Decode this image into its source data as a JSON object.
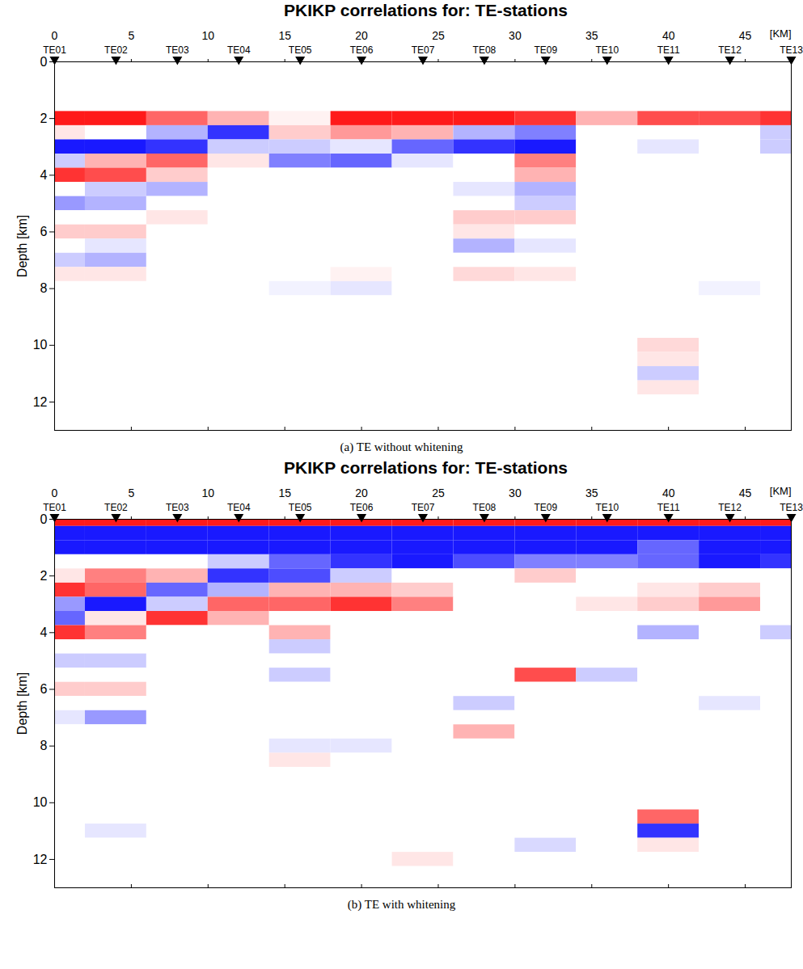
{
  "chart_data": [
    {
      "type": "heatmap",
      "title": "PKIKP correlations for: TE-stations",
      "caption": "(a) TE without whitening",
      "xlabel": "[KM]",
      "ylabel": "Depth [km]",
      "xlim": [
        0,
        48
      ],
      "xticks": [
        0,
        5,
        10,
        15,
        20,
        25,
        30,
        35,
        40,
        45
      ],
      "ylim": [
        13,
        0
      ],
      "yticks": [
        0,
        2,
        4,
        6,
        8,
        10,
        12
      ],
      "stations": {
        "names": [
          "TE01",
          "TE02",
          "TE03",
          "TE04",
          "TE05",
          "TE06",
          "TE07",
          "TE08",
          "TE09",
          "TE10",
          "TE11",
          "TE12",
          "TE13"
        ],
        "x": [
          0,
          4,
          8,
          12,
          16,
          20,
          24,
          28,
          32,
          36,
          40,
          44,
          48
        ]
      },
      "zlim": [
        -1,
        1
      ],
      "x": [
        0,
        4,
        8,
        12,
        16,
        20,
        24,
        28,
        32,
        36,
        40,
        44,
        48
      ],
      "y": [
        0,
        0.5,
        1,
        1.5,
        2,
        2.5,
        3,
        3.5,
        4,
        4.5,
        5,
        5.5,
        6,
        6.5,
        7,
        7.5,
        8,
        8.5,
        9,
        9.5,
        10,
        10.5,
        11,
        11.5,
        12,
        12.5,
        13
      ],
      "z": [
        [
          null,
          null,
          null,
          null,
          null,
          null,
          null,
          null,
          null,
          null,
          null,
          null,
          null
        ],
        [
          null,
          null,
          null,
          null,
          null,
          null,
          null,
          null,
          null,
          null,
          null,
          null,
          null
        ],
        [
          null,
          null,
          null,
          null,
          null,
          null,
          null,
          null,
          null,
          null,
          null,
          null,
          null
        ],
        [
          null,
          null,
          null,
          null,
          null,
          null,
          null,
          null,
          null,
          null,
          null,
          null,
          null
        ],
        [
          0.9,
          0.9,
          0.6,
          0.3,
          0.05,
          0.9,
          0.9,
          0.9,
          0.8,
          0.3,
          0.7,
          0.7,
          0.8
        ],
        [
          0.1,
          0,
          -0.3,
          -0.8,
          0.2,
          0.4,
          0.3,
          -0.3,
          -0.5,
          0,
          0,
          0,
          -0.2
        ],
        [
          -0.9,
          -0.9,
          -0.8,
          -0.2,
          -0.2,
          -0.1,
          -0.6,
          -0.8,
          -0.9,
          0,
          -0.1,
          0,
          -0.2
        ],
        [
          -0.2,
          0.3,
          0.6,
          0.1,
          -0.5,
          -0.6,
          -0.1,
          0,
          0.5,
          0,
          0,
          0,
          0
        ],
        [
          0.8,
          0.7,
          0.2,
          0,
          0,
          0,
          0,
          0,
          0.3,
          0,
          0,
          0,
          0
        ],
        [
          0,
          -0.2,
          -0.3,
          0,
          0,
          0,
          0,
          -0.1,
          -0.3,
          0,
          0,
          0,
          0
        ],
        [
          -0.4,
          -0.3,
          0,
          0,
          0,
          0,
          0,
          0,
          -0.2,
          0,
          0,
          0,
          0
        ],
        [
          0,
          0,
          0.1,
          0,
          0,
          0,
          0,
          0.2,
          0.2,
          0,
          0,
          0,
          0
        ],
        [
          0.2,
          0.2,
          0,
          0,
          0,
          0,
          0,
          0.1,
          0,
          0,
          0,
          0,
          0
        ],
        [
          0,
          -0.1,
          0,
          0,
          0,
          0,
          0,
          -0.3,
          -0.1,
          0,
          0,
          0,
          0
        ],
        [
          -0.2,
          -0.3,
          0,
          0,
          0,
          0,
          0,
          0,
          0,
          0,
          0,
          0,
          0
        ],
        [
          0.1,
          0.1,
          0,
          0,
          0,
          0.05,
          0,
          0.15,
          0.1,
          0,
          0,
          0,
          0
        ],
        [
          0,
          0,
          0,
          0,
          -0.05,
          -0.1,
          0,
          0,
          0,
          0,
          0,
          -0.05,
          0
        ],
        [
          0,
          0,
          0,
          0,
          0,
          0,
          0,
          0,
          0,
          0,
          0,
          0,
          0
        ],
        [
          0,
          0,
          0,
          0,
          0,
          0,
          0,
          0,
          0,
          0,
          0,
          0,
          0
        ],
        [
          0,
          0,
          0,
          0,
          0,
          0,
          0,
          0,
          0,
          0,
          0,
          0,
          0
        ],
        [
          0,
          0,
          0,
          0,
          0,
          0,
          0,
          0,
          0,
          0,
          0.15,
          0,
          0
        ],
        [
          0,
          0,
          0,
          0,
          0,
          0,
          0,
          0,
          0,
          0,
          0.1,
          0,
          0
        ],
        [
          0,
          0,
          0,
          0,
          0,
          0,
          0,
          0,
          0,
          0,
          -0.2,
          0,
          0
        ],
        [
          0,
          0,
          0,
          0,
          0,
          0,
          0,
          0,
          0,
          0,
          0.1,
          0,
          0
        ],
        [
          0,
          0,
          0,
          0,
          0,
          0,
          0,
          0,
          0,
          0,
          0,
          0,
          0
        ],
        [
          0,
          0,
          0,
          0,
          0,
          0,
          0,
          0,
          0,
          0,
          0,
          0,
          0
        ],
        [
          0,
          0,
          0,
          0,
          0,
          0,
          0,
          0,
          0,
          0,
          0,
          0,
          0
        ]
      ]
    },
    {
      "type": "heatmap",
      "title": "PKIKP correlations for: TE-stations",
      "caption": "(b) TE with whitening",
      "xlabel": "[KM]",
      "ylabel": "Depth [km]",
      "xlim": [
        0,
        48
      ],
      "xticks": [
        0,
        5,
        10,
        15,
        20,
        25,
        30,
        35,
        40,
        45
      ],
      "ylim": [
        13,
        0
      ],
      "yticks": [
        0,
        2,
        4,
        6,
        8,
        10,
        12
      ],
      "stations": {
        "names": [
          "TE01",
          "TE02",
          "TE03",
          "TE04",
          "TE05",
          "TE06",
          "TE07",
          "TE08",
          "TE09",
          "TE10",
          "TE11",
          "TE12",
          "TE13"
        ],
        "x": [
          0,
          4,
          8,
          12,
          16,
          20,
          24,
          28,
          32,
          36,
          40,
          44,
          48
        ]
      },
      "zlim": [
        -1,
        1
      ],
      "x": [
        0,
        4,
        8,
        12,
        16,
        20,
        24,
        28,
        32,
        36,
        40,
        44,
        48
      ],
      "y": [
        0,
        0.5,
        1,
        1.5,
        2,
        2.5,
        3,
        3.5,
        4,
        4.5,
        5,
        5.5,
        6,
        6.5,
        7,
        7.5,
        8,
        8.5,
        9,
        9.5,
        10,
        10.5,
        11,
        11.5,
        12,
        12.5,
        13
      ],
      "z": [
        [
          0.9,
          0.9,
          0.9,
          0.9,
          0.9,
          0.9,
          0.9,
          0.9,
          0.9,
          0.9,
          0.9,
          0.9,
          0.9
        ],
        [
          -0.9,
          -0.9,
          -0.9,
          -0.9,
          -0.9,
          -0.9,
          -0.9,
          -0.9,
          -0.9,
          -0.9,
          -0.9,
          -0.9,
          -0.9
        ],
        [
          -0.9,
          -0.9,
          -0.9,
          -0.9,
          -0.9,
          -0.9,
          -0.9,
          -0.9,
          -0.9,
          -0.9,
          -0.6,
          -0.9,
          -0.9
        ],
        [
          0,
          0,
          0,
          -0.2,
          -0.6,
          -0.8,
          -0.9,
          -0.7,
          -0.5,
          -0.5,
          -0.6,
          -0.9,
          -0.8
        ],
        [
          0.1,
          0.5,
          0.3,
          -0.8,
          -0.7,
          -0.2,
          0,
          0,
          0.2,
          0,
          0,
          0,
          0
        ],
        [
          0.8,
          0.6,
          -0.6,
          -0.3,
          0.3,
          0.3,
          0.2,
          0,
          0,
          0,
          0.1,
          0.2,
          0
        ],
        [
          -0.4,
          -0.9,
          -0.2,
          0.6,
          0.6,
          0.8,
          0.5,
          0,
          0,
          0.1,
          0.2,
          0.4,
          0
        ],
        [
          -0.6,
          0.1,
          0.8,
          0.3,
          0,
          0,
          0,
          0,
          0,
          0,
          0,
          0,
          0
        ],
        [
          0.8,
          0.5,
          0,
          0,
          0.3,
          0,
          0,
          0,
          0,
          0,
          -0.3,
          0,
          -0.2
        ],
        [
          0,
          0,
          0,
          0,
          -0.2,
          0,
          0,
          0,
          0,
          0,
          0,
          0,
          0
        ],
        [
          -0.2,
          -0.2,
          0,
          0,
          0,
          0,
          0,
          0,
          0,
          0,
          0,
          0,
          0
        ],
        [
          0,
          0,
          0,
          0,
          -0.2,
          0,
          0,
          0,
          0.7,
          -0.2,
          0,
          0,
          0
        ],
        [
          0.2,
          0.2,
          0,
          0,
          0,
          0,
          0,
          0,
          0,
          0,
          0,
          0,
          0
        ],
        [
          0,
          0,
          0,
          0,
          0,
          0,
          0,
          -0.2,
          0,
          0,
          0,
          -0.1,
          0
        ],
        [
          -0.1,
          -0.4,
          0,
          0,
          0,
          0,
          0,
          0,
          0,
          0,
          0,
          0,
          0
        ],
        [
          0,
          0,
          0,
          0,
          0,
          0,
          0,
          0.3,
          0,
          0,
          0,
          0,
          0
        ],
        [
          0,
          0,
          0,
          0,
          -0.1,
          -0.1,
          0,
          0,
          0,
          0,
          0,
          0,
          0
        ],
        [
          0,
          0,
          0,
          0,
          0.1,
          0,
          0,
          0,
          0,
          0,
          0,
          0,
          0
        ],
        [
          0,
          0,
          0,
          0,
          0,
          0,
          0,
          0,
          0,
          0,
          0,
          0,
          0
        ],
        [
          0,
          0,
          0,
          0,
          0,
          0,
          0,
          0,
          0,
          0,
          0,
          0,
          0
        ],
        [
          0,
          0,
          0,
          0,
          0,
          0,
          0,
          0,
          0,
          0,
          0,
          0,
          0
        ],
        [
          0,
          0,
          0,
          0,
          0,
          0,
          0,
          0,
          0,
          0,
          0.6,
          0,
          0
        ],
        [
          0,
          -0.1,
          0,
          0,
          0,
          0,
          0,
          0,
          0,
          0,
          -0.8,
          0,
          0
        ],
        [
          0,
          0,
          0,
          0,
          0,
          0,
          0,
          0,
          -0.15,
          0,
          0.1,
          0,
          0
        ],
        [
          0,
          0,
          0,
          0,
          0,
          0,
          0.1,
          0,
          0,
          0,
          0,
          0,
          0
        ],
        [
          0,
          0,
          0,
          0,
          0,
          0,
          0,
          0,
          0,
          0,
          0,
          0,
          0
        ],
        [
          0,
          0,
          0,
          0,
          0,
          0,
          0,
          0,
          0,
          0,
          0,
          0,
          0
        ]
      ]
    }
  ]
}
